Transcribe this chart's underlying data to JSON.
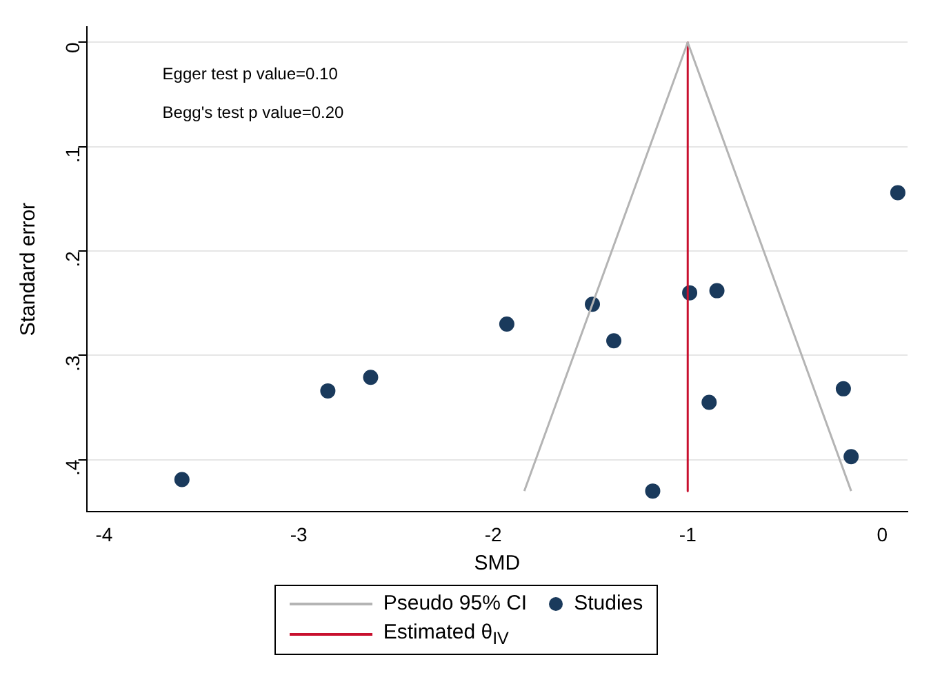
{
  "chart_data": {
    "type": "scatter",
    "xlabel": "SMD",
    "ylabel": "Standard error",
    "xlim": [
      -4.09,
      0.13
    ],
    "xticks": [
      -4,
      -3,
      -2,
      -1,
      0
    ],
    "ylim": [
      0.45,
      -0.015
    ],
    "yticks": [
      {
        "value": 0,
        "label": "0"
      },
      {
        "value": 0.1,
        "label": ".1"
      },
      {
        "value": 0.2,
        "label": ".2"
      },
      {
        "value": 0.3,
        "label": ".3"
      },
      {
        "value": 0.4,
        "label": ".4"
      }
    ],
    "grid": "y",
    "legend": "bottom",
    "annotations": [
      "Egger test p value=0.10",
      "Begg's test p value=0.20"
    ],
    "series": [
      {
        "name": "Pseudo 95% CI",
        "type": "line",
        "color": "#b4b4b4",
        "marker": "none",
        "x": [
          -1.84,
          -1,
          -0.16
        ],
        "values": [
          0.43,
          0,
          0.43
        ]
      },
      {
        "name": "Estimated θ$_{IV}$",
        "type": "line",
        "color": "#c8102e",
        "marker": "none",
        "x": [
          -1,
          -1
        ],
        "values": [
          0,
          0.43
        ]
      },
      {
        "name": "Studies",
        "type": "scatter",
        "color": "#1a3a5c",
        "marker": "circle",
        "x": [
          -3.6,
          -2.85,
          -2.63,
          -1.93,
          -1.49,
          -1.38,
          -1.18,
          -0.99,
          -0.85,
          -0.89,
          -0.2,
          -0.16,
          0.08
        ],
        "values": [
          0.419,
          0.334,
          0.321,
          0.27,
          0.251,
          0.286,
          0.43,
          0.24,
          0.238,
          0.345,
          0.332,
          0.397,
          0.144
        ]
      }
    ]
  }
}
